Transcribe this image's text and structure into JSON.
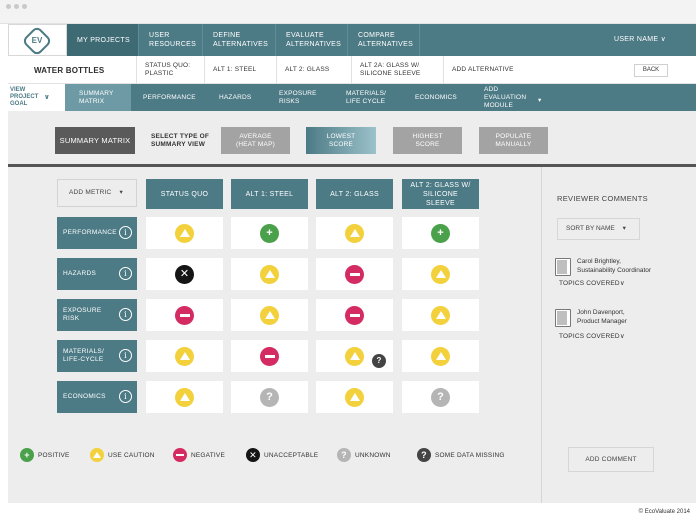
{
  "app": {
    "logo_text": "EV"
  },
  "topnav": {
    "items": [
      {
        "label": "MY PROJECTS"
      },
      {
        "label": "USER RESOURCES"
      },
      {
        "label": "DEFINE ALTERNATIVES"
      },
      {
        "label": "EVALUATE ALTERNATIVES"
      },
      {
        "label": "COMPARE ALTERNATIVES"
      }
    ],
    "user_name": "USER NAME",
    "user_chevron": "∨"
  },
  "project": {
    "title": "WATER BOTTLES",
    "tabs": [
      {
        "label": "STATUS QUO: PLASTIC"
      },
      {
        "label": "ALT 1:  STEEL"
      },
      {
        "label": "ALT 2:  GLASS"
      },
      {
        "label": "ALT 2A: GLASS W/ SILICONE SLEEVE"
      },
      {
        "label": "ADD ALTERNATIVE"
      }
    ],
    "back_label": "BACK"
  },
  "subnav": {
    "view_goal": "VIEW PROJECT GOAL",
    "view_goal_chevron": "∨",
    "items": [
      {
        "label": "SUMMARY MATRIX"
      },
      {
        "label": "PERFORMANCE"
      },
      {
        "label": "HAZARDS"
      },
      {
        "label": "EXPOSURE RISKS"
      },
      {
        "label": "MATERIALS/ LIFE CYCLE"
      },
      {
        "label": "ECONOMICS"
      },
      {
        "label": "ADD EVALUATION MODULE"
      }
    ],
    "module_caret": "▾"
  },
  "controls": {
    "summary_matrix": "SUMMARY MATRIX",
    "select_label": "SELECT TYPE OF SUMMARY VIEW",
    "views": [
      {
        "label": "AVERAGE (HEAT MAP)"
      },
      {
        "label": "LOWEST SCORE"
      },
      {
        "label": "HIGHEST SCORE"
      },
      {
        "label": "POPULATE MANUALLY"
      }
    ]
  },
  "matrix": {
    "add_metric": "ADD METRIC",
    "add_metric_caret": "▾",
    "info_glyph": "i",
    "columns": [
      {
        "label": "STATUS QUO"
      },
      {
        "label": "ALT 1:  STEEL"
      },
      {
        "label": "ALT 2:  GLASS"
      },
      {
        "label": "ALT 2:  GLASS W/ SILICONE SLEEVE"
      }
    ],
    "rows": [
      {
        "label": "PERFORMANCE",
        "cells": [
          "caution",
          "positive",
          "caution",
          "positive"
        ]
      },
      {
        "label": "HAZARDS",
        "cells": [
          "unacceptable",
          "caution",
          "negative",
          "caution"
        ]
      },
      {
        "label": "EXPOSURE RISK",
        "cells": [
          "negative",
          "caution",
          "negative",
          "caution"
        ]
      },
      {
        "label": "MATERIALS/ LIFE-CYCLE",
        "cells": [
          "caution",
          "negative",
          "caution",
          "caution"
        ]
      },
      {
        "label": "ECONOMICS",
        "cells": [
          "caution",
          "unknown",
          "caution",
          "unknown"
        ]
      }
    ],
    "missing_glyph": "?"
  },
  "legend": [
    {
      "key": "positive",
      "label": "POSITIVE"
    },
    {
      "key": "caution",
      "label": "USE CAUTION"
    },
    {
      "key": "negative",
      "label": "NEGATIVE"
    },
    {
      "key": "unacceptable",
      "label": "UNACCEPTABLE"
    },
    {
      "key": "unknown",
      "label": "UNKNOWN"
    },
    {
      "key": "missing",
      "label": "SOME DATA MISSING"
    }
  ],
  "sidebar": {
    "title": "REVIEWER COMMENTS",
    "sort_label": "SORT BY NAME",
    "sort_caret": "▾",
    "reviewers": [
      {
        "name": "Carol Brightley,",
        "role": "Sustainability Coordinator",
        "topics": "TOPICS COVERED"
      },
      {
        "name": "John Davenport,",
        "role": "Product Manager",
        "topics": "TOPICS COVERED"
      }
    ],
    "topics_chevron": "∨",
    "add_comment": "ADD COMMENT"
  },
  "footer": {
    "copyright": "© EcoValuate 2014"
  },
  "colors": {
    "teal": "#4c7a85",
    "positive": "#4ba14b",
    "caution": "#f2d13c",
    "negative": "#d32b62",
    "unacceptable": "#151515",
    "unknown": "#b5b5b5",
    "missing": "#444444"
  },
  "icons": {
    "positive": "plus-icon",
    "caution": "warning-triangle-icon",
    "negative": "minus-icon",
    "unacceptable": "x-icon",
    "unknown": "question-icon",
    "missing": "question-icon"
  }
}
